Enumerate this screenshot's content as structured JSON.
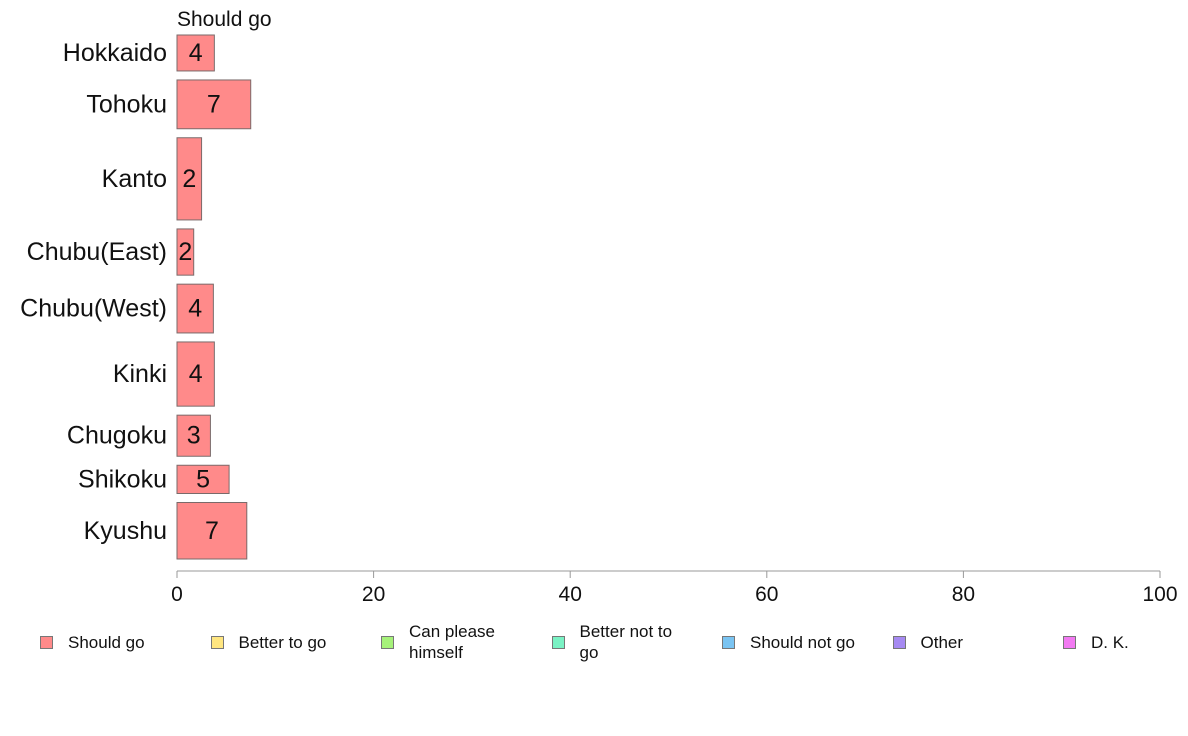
{
  "chart_data": {
    "type": "bar",
    "orientation": "horizontal",
    "stacked": true,
    "series_label": "Should go",
    "categories": [
      "Hokkaido",
      "Tohoku",
      "Kanto",
      "Chubu(East)",
      "Chubu(West)",
      "Kinki",
      "Chugoku",
      "Shikoku",
      "Kyushu"
    ],
    "group_sizes_relative": [
      0.7,
      0.95,
      1.6,
      0.9,
      0.95,
      1.25,
      0.8,
      0.55,
      1.1
    ],
    "series": [
      {
        "name": "Should go",
        "color": "#ff8a8a",
        "values": [
          3.8,
          7.5,
          2.5,
          1.7,
          3.7,
          3.8,
          3.4,
          5.3,
          7.1
        ],
        "labels": [
          "4",
          "7",
          "2",
          "2",
          "4",
          "4",
          "3",
          "5",
          "7"
        ]
      }
    ],
    "xlim": [
      0,
      100
    ],
    "xticks": [
      "0",
      "20",
      "40",
      "60",
      "80",
      "100"
    ],
    "legend": [
      {
        "label": "Should go",
        "color": "#ff8a8a"
      },
      {
        "label": "Better to go",
        "color": "#ffe680"
      },
      {
        "label": "Can please himself",
        "color": "#a6f27a"
      },
      {
        "label": "Better not to go",
        "color": "#7af2c4"
      },
      {
        "label": "Should not go",
        "color": "#7ac4f2"
      },
      {
        "label": "Other",
        "color": "#a68af2"
      },
      {
        "label": "D. K.",
        "color": "#f27af2"
      }
    ],
    "legend_position": "bottom",
    "grid": false
  }
}
